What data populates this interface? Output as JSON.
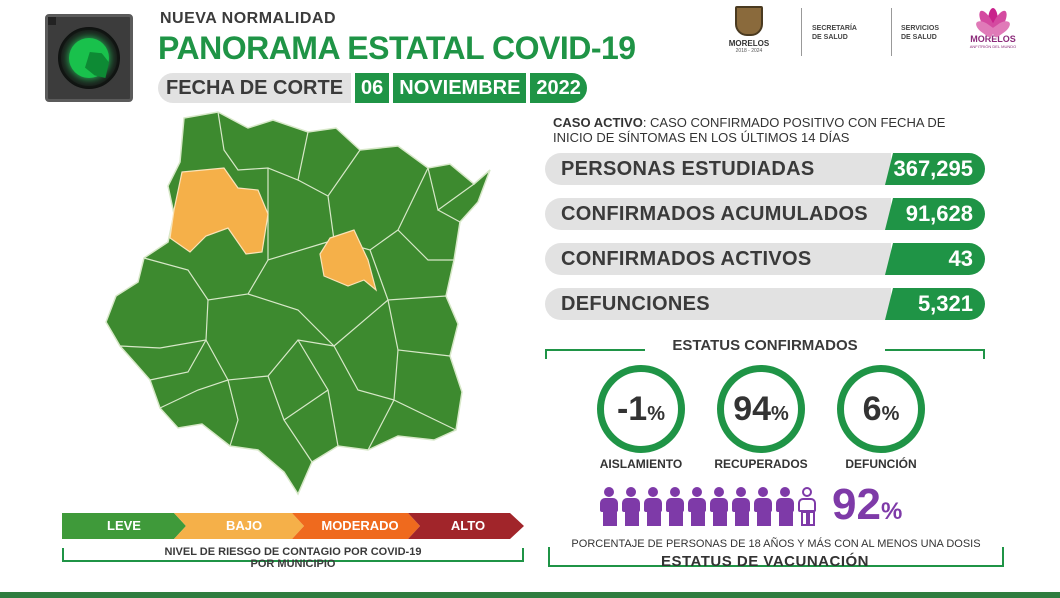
{
  "header": {
    "eyebrow": "NUEVA  NORMALIDAD",
    "title": "PANORAMA ESTATAL COVID-19",
    "fecha_label": "FECHA DE CORTE",
    "fecha_dia": "06",
    "fecha_mes": "NOVIEMBRE",
    "fecha_anio": "2022"
  },
  "logos": {
    "morelos": "MORELOS",
    "morelos_years": "2018 - 2024",
    "secretaria": [
      "SECRETARÍA",
      "DE SALUD"
    ],
    "servicios": [
      "SERVICIOS",
      "DE SALUD"
    ],
    "flower": "MORELOS",
    "flower_sub": "ANFITRIÓN DEL MUNDO"
  },
  "definicion": {
    "term": "CASO ACTIVO",
    "text": ": CASO CONFIRMADO POSITIVO CON FECHA DE INICIO DE SÍNTOMAS EN LOS ÚLTIMOS 14 DÍAS"
  },
  "stats": [
    {
      "label": "PERSONAS ESTUDIADAS",
      "value": "367,295"
    },
    {
      "label": "CONFIRMADOS ACUMULADOS",
      "value": "91,628"
    },
    {
      "label": "CONFIRMADOS ACTIVOS",
      "value": "43"
    },
    {
      "label": "DEFUNCIONES",
      "value": "5,321"
    }
  ],
  "status": {
    "title": "ESTATUS CONFIRMADOS",
    "items": [
      {
        "value": "-1",
        "unit": "%",
        "label": "AISLAMIENTO"
      },
      {
        "value": "94",
        "unit": "%",
        "label": "RECUPERADOS"
      },
      {
        "value": "6",
        "unit": "%",
        "label": "DEFUNCIÓN"
      }
    ]
  },
  "vacunacion": {
    "value": "92",
    "unit": "%",
    "filled_fraction": 0.9,
    "description": "PORCENTAJE DE PERSONAS DE 18 AÑOS Y MÁS CON AL MENOS UNA DOSIS",
    "title": "ESTATUS DE VACUNACIÓN"
  },
  "risk": {
    "levels": [
      {
        "label": "LEVE",
        "color": "#3f9a3a"
      },
      {
        "label": "BAJO",
        "color": "#f5b049"
      },
      {
        "label": "MODERADO",
        "color": "#ef6a1e"
      },
      {
        "label": "ALTO",
        "color": "#a1252a"
      }
    ],
    "caption_prefix": "NIVEL DE RIESGO DE CONTAGIO POR ",
    "caption_bold": "COVID-19",
    "caption_suffix": "POR MUNICIPIO"
  },
  "colors": {
    "accent": "#1f9446",
    "map_green": "#3d8a2f",
    "map_orange": "#f5b049",
    "vaccine_purple": "#7e3aa8"
  }
}
